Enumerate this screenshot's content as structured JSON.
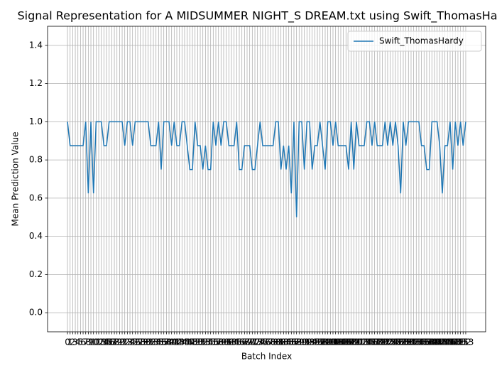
{
  "chart_data": {
    "type": "line",
    "title": "Signal Representation for A MIDSUMMER NIGHT_S DREAM.txt using Swift_ThomasHardy",
    "xlabel": "Batch Index",
    "ylabel": "Mean Prediction Value",
    "x": [
      0,
      1,
      2,
      3,
      4,
      5,
      6,
      7,
      8,
      9,
      10,
      11,
      12,
      13,
      14,
      15,
      16,
      17,
      18,
      19,
      20,
      21,
      22,
      23,
      24,
      25,
      26,
      27,
      28,
      29,
      30,
      31,
      32,
      33,
      34,
      35,
      36,
      37,
      38,
      39,
      40,
      41,
      42,
      43,
      44,
      45,
      46,
      47,
      48,
      49,
      50,
      51,
      52,
      53,
      54,
      55,
      56,
      57,
      58,
      59,
      60,
      61,
      62,
      63,
      64,
      65,
      66,
      67,
      68,
      69,
      70,
      71,
      72,
      73,
      74,
      75,
      76,
      77,
      78,
      79,
      80,
      81,
      82,
      83,
      84,
      85,
      86,
      87,
      88,
      89,
      90,
      91,
      92,
      93,
      94,
      95,
      96,
      97,
      98,
      99,
      100,
      101,
      102,
      103,
      104,
      105,
      106,
      107,
      108,
      109,
      110,
      111,
      112,
      113,
      114,
      115,
      116,
      117,
      118,
      119,
      120,
      121,
      122,
      123,
      124,
      125,
      126,
      127,
      128,
      129,
      130,
      131,
      132,
      133,
      134,
      135,
      136,
      137,
      138,
      139,
      140,
      141,
      142,
      143,
      144,
      145,
      146,
      147,
      148,
      149,
      150,
      151,
      152,
      153
    ],
    "series": [
      {
        "name": "Swift_ThomasHardy",
        "color": "#1f77b4",
        "values": [
          1,
          0.875,
          0.875,
          0.875,
          0.875,
          0.875,
          0.875,
          1,
          0.625,
          1,
          0.625,
          1,
          1,
          1,
          0.875,
          0.875,
          1,
          1,
          1,
          1,
          1,
          1,
          0.875,
          1,
          1,
          0.875,
          1,
          1,
          1,
          1,
          1,
          1,
          0.875,
          0.875,
          0.875,
          1,
          0.75,
          1,
          1,
          1,
          0.875,
          1,
          0.875,
          0.875,
          1,
          1,
          0.875,
          0.75,
          0.75,
          1,
          0.875,
          0.875,
          0.75,
          0.875,
          0.75,
          0.75,
          1,
          0.875,
          1,
          0.875,
          1,
          1,
          0.875,
          0.875,
          0.875,
          1,
          0.75,
          0.75,
          0.875,
          0.875,
          0.875,
          0.75,
          0.75,
          0.875,
          1,
          0.875,
          0.875,
          0.875,
          0.875,
          0.875,
          1,
          1,
          0.75,
          0.875,
          0.75,
          0.875,
          0.625,
          1,
          0.5,
          1,
          1,
          0.75,
          1,
          1,
          0.75,
          0.875,
          0.875,
          1,
          0.875,
          0.75,
          1,
          1,
          0.875,
          1,
          0.875,
          0.875,
          0.875,
          0.875,
          0.75,
          1,
          0.75,
          1,
          0.875,
          0.875,
          0.875,
          1,
          1,
          0.875,
          1,
          0.875,
          0.875,
          0.875,
          1,
          0.875,
          1,
          0.875,
          1,
          0.875,
          0.625,
          1,
          0.875,
          1,
          1,
          1,
          1,
          1,
          0.875,
          0.875,
          0.75,
          0.75,
          1,
          1,
          1,
          0.875,
          0.625,
          0.875,
          0.875,
          1,
          0.75,
          1,
          0.875,
          1,
          0.875,
          1
        ]
      }
    ],
    "xlim": [
      -7.65,
      160.65
    ],
    "xticks": [
      0,
      1,
      2,
      3,
      4,
      5,
      6,
      7,
      8,
      9,
      10,
      11,
      12,
      13,
      14,
      15,
      16,
      17,
      18,
      19,
      20,
      21,
      22,
      23,
      24,
      25,
      26,
      27,
      28,
      29,
      30,
      31,
      32,
      33,
      34,
      35,
      36,
      37,
      38,
      39,
      40,
      41,
      42,
      43,
      44,
      45,
      46,
      47,
      48,
      49,
      50,
      51,
      52,
      53,
      54,
      55,
      56,
      57,
      58,
      59,
      60,
      61,
      62,
      63,
      64,
      65,
      66,
      67,
      68,
      69,
      70,
      71,
      72,
      73,
      74,
      75,
      76,
      77,
      78,
      79,
      80,
      81,
      82,
      83,
      84,
      85,
      86,
      87,
      88,
      89,
      90,
      91,
      92,
      93,
      94,
      95,
      96,
      97,
      98,
      99,
      100,
      101,
      102,
      103,
      104,
      105,
      106,
      107,
      108,
      109,
      110,
      111,
      112,
      113,
      114,
      115,
      116,
      117,
      118,
      119,
      120,
      121,
      122,
      123,
      124,
      125,
      126,
      127,
      128,
      129,
      130,
      131,
      132,
      133,
      134,
      135,
      136,
      137,
      138,
      139,
      140,
      141,
      142,
      143,
      144,
      145,
      146,
      147,
      148,
      149,
      150,
      151,
      152,
      153
    ],
    "ylim": [
      -0.1,
      1.5
    ],
    "yticks": [
      {
        "value": 0,
        "label": "0.0"
      },
      {
        "value": 0.2,
        "label": "0.2"
      },
      {
        "value": 0.4,
        "label": "0.4"
      },
      {
        "value": 0.6,
        "label": "0.6"
      },
      {
        "value": 0.8,
        "label": "0.8"
      },
      {
        "value": 1,
        "label": "1.0"
      },
      {
        "value": 1.2,
        "label": "1.2"
      },
      {
        "value": 1.4,
        "label": "1.4"
      }
    ],
    "grid": true,
    "legend": "upper right"
  }
}
